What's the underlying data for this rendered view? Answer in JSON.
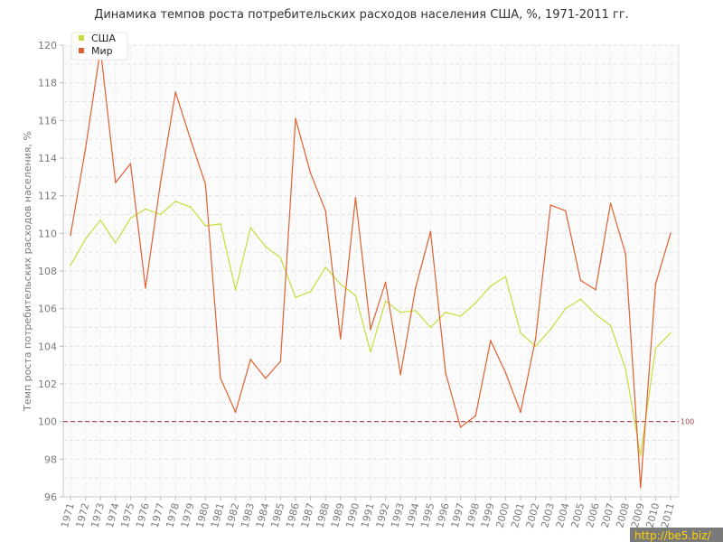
{
  "chart_data": {
    "type": "line",
    "title": "Динамика темпов роста потребительских расходов населения США, %, 1971-2011 гг.",
    "ylabel": "Темп роста потребительских расходов населения, %",
    "xlabel": "",
    "ylim": [
      96,
      120
    ],
    "y_ticks": [
      96,
      98,
      100,
      102,
      104,
      106,
      108,
      110,
      112,
      114,
      116,
      118,
      120
    ],
    "categories": [
      "1971",
      "1972",
      "1973",
      "1974",
      "1975",
      "1976",
      "1977",
      "1978",
      "1979",
      "1980",
      "1981",
      "1982",
      "1983",
      "1984",
      "1985",
      "1986",
      "1987",
      "1988",
      "1989",
      "1990",
      "1991",
      "1992",
      "1993",
      "1994",
      "1995",
      "1996",
      "1997",
      "1998",
      "1999",
      "2000",
      "2001",
      "2002",
      "2003",
      "2004",
      "2005",
      "2006",
      "2007",
      "2008",
      "2009",
      "2010",
      "2011"
    ],
    "series": [
      {
        "name": "США",
        "color": "#c8dc3c",
        "values": [
          108.3,
          109.7,
          110.7,
          109.5,
          110.8,
          111.3,
          111.0,
          111.7,
          111.4,
          110.4,
          110.5,
          107.0,
          110.3,
          109.3,
          108.7,
          106.6,
          106.9,
          108.2,
          107.3,
          106.7,
          103.7,
          106.4,
          105.8,
          105.9,
          105.0,
          105.8,
          105.6,
          106.3,
          107.2,
          107.7,
          104.7,
          104.0,
          104.9,
          106.0,
          106.5,
          105.7,
          105.1,
          102.8,
          98.2,
          103.9,
          104.7
        ]
      },
      {
        "name": "Мир",
        "color": "#e06030",
        "values": [
          109.9,
          114.5,
          119.8,
          112.7,
          113.7,
          107.1,
          112.7,
          117.5,
          115.0,
          112.6,
          102.3,
          100.5,
          103.3,
          102.3,
          103.2,
          116.1,
          113.2,
          111.2,
          104.4,
          111.9,
          104.9,
          107.4,
          102.5,
          107.1,
          110.1,
          102.6,
          99.7,
          100.3,
          104.3,
          102.6,
          100.5,
          104.4,
          111.5,
          111.2,
          107.5,
          107.0,
          111.6,
          108.9,
          96.5,
          107.3,
          110.0
        ]
      }
    ],
    "reference_line": {
      "value": 100,
      "label": "100",
      "color": "#9e3a4a",
      "style": "dashed"
    },
    "grid": true,
    "legend_position": "top-left"
  },
  "watermark": "http://be5.biz/"
}
